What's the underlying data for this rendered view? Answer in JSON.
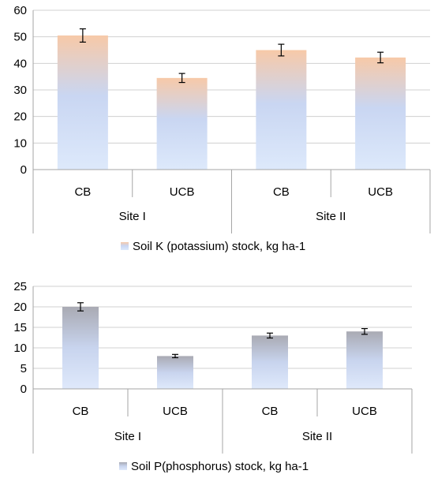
{
  "chart_data": [
    {
      "type": "bar",
      "title": "",
      "xlabel": "",
      "ylabel": "",
      "ylim": [
        0,
        60
      ],
      "yticks": [
        0,
        10,
        20,
        30,
        40,
        50,
        60
      ],
      "grid": true,
      "legend_position": "bottom",
      "colors": {
        "top": "#f7c9a8",
        "mid": "#c9d6f2",
        "bottom": "#dde9fb"
      },
      "groups": [
        {
          "label": "Site I",
          "categories": [
            "CB",
            "UCB"
          ]
        },
        {
          "label": "Site II",
          "categories": [
            "CB",
            "UCB"
          ]
        }
      ],
      "categories": [
        "CB",
        "UCB",
        "CB",
        "UCB"
      ],
      "series": [
        {
          "name": "Soil K (potassium) stock, kg ha-1",
          "values": [
            50.5,
            34.5,
            45.0,
            42.2
          ],
          "error": [
            2.5,
            1.7,
            2.2,
            2.0
          ]
        }
      ]
    },
    {
      "type": "bar",
      "title": "",
      "xlabel": "",
      "ylabel": "",
      "ylim": [
        0,
        25
      ],
      "yticks": [
        0,
        5,
        10,
        15,
        20,
        25
      ],
      "grid": true,
      "legend_position": "bottom",
      "colors": {
        "top": "#a9aab3",
        "mid": "#c8d4ee",
        "bottom": "#dfe9fb"
      },
      "groups": [
        {
          "label": "Site I",
          "categories": [
            "CB",
            "UCB"
          ]
        },
        {
          "label": "Site II",
          "categories": [
            "CB",
            "UCB"
          ]
        }
      ],
      "categories": [
        "CB",
        "UCB",
        "CB",
        "UCB"
      ],
      "series": [
        {
          "name": "Soil P(phosphorus) stock, kg ha-1",
          "values": [
            20.0,
            8.0,
            13.0,
            14.0
          ],
          "error": [
            1.0,
            0.4,
            0.6,
            0.7
          ]
        }
      ]
    }
  ]
}
